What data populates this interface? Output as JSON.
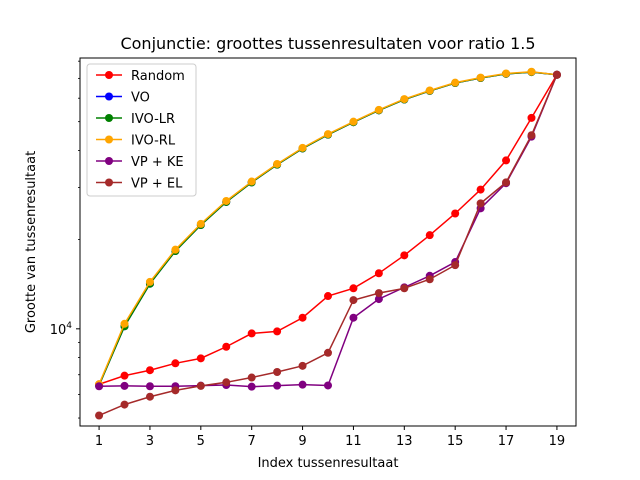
{
  "chart_data": {
    "type": "line",
    "title": "Conjunctie: groottes tussenresultaten voor ratio 1.5",
    "xlabel": "Index tussenresultaat",
    "ylabel": "Grootte van tussenresultaat",
    "yscale": "log",
    "ytick_label": {
      "base": "10",
      "exponent": "4"
    },
    "xticks": [
      "1",
      "3",
      "5",
      "7",
      "9",
      "11",
      "13",
      "15",
      "17",
      "19"
    ],
    "xlim": [
      0.25,
      19.75
    ],
    "ylim": [
      4700,
      82000
    ],
    "legend": "upper left",
    "grid": false,
    "x": [
      1,
      2,
      3,
      4,
      5,
      6,
      7,
      8,
      9,
      10,
      11,
      12,
      13,
      14,
      15,
      16,
      17,
      18,
      19
    ],
    "series": [
      {
        "name": "Random",
        "color": "#ff0000",
        "values": [
          6500,
          6950,
          7250,
          7650,
          7950,
          8700,
          9650,
          9800,
          10900,
          12900,
          13700,
          15400,
          17700,
          20700,
          24500,
          29500,
          37000,
          51500,
          72000
        ]
      },
      {
        "name": "VO",
        "color": "#0000ff",
        "values": [
          6450,
          10200,
          14200,
          18300,
          22400,
          26800,
          31200,
          35800,
          40600,
          45200,
          49800,
          54600,
          59400,
          63500,
          67500,
          70200,
          72500,
          73500,
          72000
        ]
      },
      {
        "name": "IVO-LR",
        "color": "#008000",
        "values": [
          6450,
          10200,
          14200,
          18300,
          22400,
          26800,
          31200,
          35800,
          40600,
          45200,
          49800,
          54600,
          59400,
          63500,
          67500,
          70200,
          72500,
          73500,
          72000
        ]
      },
      {
        "name": "IVO-RL",
        "color": "#ffa500",
        "values": [
          6500,
          10400,
          14400,
          18500,
          22600,
          27000,
          31400,
          36000,
          40800,
          45400,
          50000,
          54800,
          59600,
          63700,
          67700,
          70400,
          72700,
          73700,
          72000
        ]
      },
      {
        "name": "VP + KE",
        "color": "#800080",
        "values": [
          6400,
          6420,
          6400,
          6400,
          6430,
          6460,
          6380,
          6430,
          6480,
          6440,
          10900,
          12600,
          13800,
          15100,
          16800,
          25500,
          31000,
          44500,
          72000
        ]
      },
      {
        "name": "VP + EL",
        "color": "#a52a2a",
        "values": [
          5100,
          5550,
          5900,
          6200,
          6420,
          6600,
          6850,
          7150,
          7500,
          8300,
          12500,
          13200,
          13700,
          14700,
          16400,
          26500,
          31200,
          45000,
          72000
        ]
      }
    ]
  }
}
